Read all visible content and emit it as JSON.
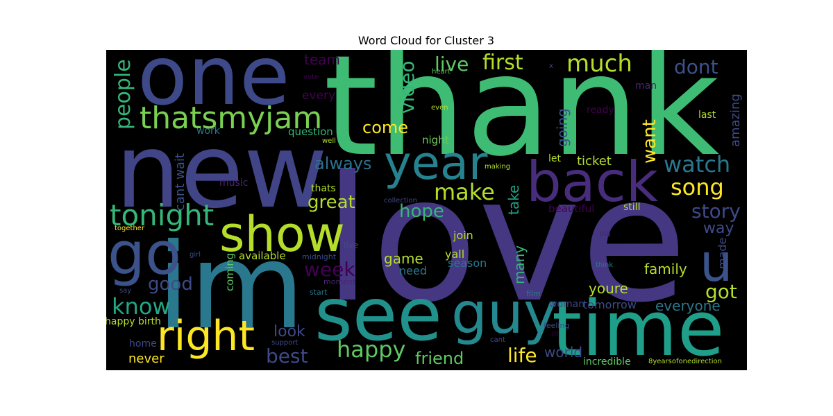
{
  "chart_data": {
    "type": "wordcloud",
    "title": "Word Cloud for Cluster 3",
    "background": "#000000",
    "words": [
      {
        "text": "thank",
        "color": "#3fbc73"
      },
      {
        "text": "love",
        "color": "#453781"
      },
      {
        "text": "new",
        "color": "#414487"
      },
      {
        "text": "one",
        "color": "#3e4989"
      },
      {
        "text": "im",
        "color": "#2a788e"
      },
      {
        "text": "see",
        "color": "#21918c"
      },
      {
        "text": "guy",
        "color": "#23898e"
      },
      {
        "text": "time",
        "color": "#1f9e89"
      },
      {
        "text": "back",
        "color": "#472d7b"
      },
      {
        "text": "show",
        "color": "#b5de2b"
      },
      {
        "text": "year",
        "color": "#26828e"
      },
      {
        "text": "go",
        "color": "#3b528b"
      },
      {
        "text": "u",
        "color": "#3b528b"
      },
      {
        "text": "thatsmyjam",
        "color": "#7ad151"
      },
      {
        "text": "right",
        "color": "#fde725"
      },
      {
        "text": "tonight",
        "color": "#35b779"
      },
      {
        "text": "know",
        "color": "#22a884"
      },
      {
        "text": "good",
        "color": "#3e4a89"
      },
      {
        "text": "week",
        "color": "#440154"
      },
      {
        "text": "people",
        "color": "#35b779"
      },
      {
        "text": "much",
        "color": "#b5de2b"
      },
      {
        "text": "dont",
        "color": "#3b528b"
      },
      {
        "text": "first",
        "color": "#b5de2b"
      },
      {
        "text": "live",
        "color": "#5ec962"
      },
      {
        "text": "video",
        "color": "#35b779"
      },
      {
        "text": "team",
        "color": "#440154"
      },
      {
        "text": "every",
        "color": "#440154"
      },
      {
        "text": "come",
        "color": "#fde725"
      },
      {
        "text": "always",
        "color": "#2c728e"
      },
      {
        "text": "question",
        "color": "#35b779"
      },
      {
        "text": "night",
        "color": "#6ece58"
      },
      {
        "text": "work",
        "color": "#2a788e"
      },
      {
        "text": "cant wait",
        "color": "#3b528b"
      },
      {
        "text": "great",
        "color": "#b5de2b"
      },
      {
        "text": "make",
        "color": "#b5de2b"
      },
      {
        "text": "hope",
        "color": "#35b779"
      },
      {
        "text": "take",
        "color": "#1fa187"
      },
      {
        "text": "want",
        "color": "#fde725"
      },
      {
        "text": "going",
        "color": "#3b528b"
      },
      {
        "text": "ready",
        "color": "#440154"
      },
      {
        "text": "man",
        "color": "#482475"
      },
      {
        "text": "last",
        "color": "#b5de2b"
      },
      {
        "text": "amazing",
        "color": "#3e4a89"
      },
      {
        "text": "watch",
        "color": "#2a788e"
      },
      {
        "text": "song",
        "color": "#fde725"
      },
      {
        "text": "story",
        "color": "#3e4a89"
      },
      {
        "text": "way",
        "color": "#3e4a89"
      },
      {
        "text": "made",
        "color": "#3e4a89"
      },
      {
        "text": "ticket",
        "color": "#b5de2b"
      },
      {
        "text": "let",
        "color": "#b5de2b"
      },
      {
        "text": "still",
        "color": "#b5de2b"
      },
      {
        "text": "beautiful",
        "color": "#440154"
      },
      {
        "text": "family",
        "color": "#b5de2b"
      },
      {
        "text": "youre",
        "color": "#b5de2b"
      },
      {
        "text": "tomorrow",
        "color": "#3e4a89"
      },
      {
        "text": "everyone",
        "color": "#2a788e"
      },
      {
        "text": "got",
        "color": "#b5de2b"
      },
      {
        "text": "woman",
        "color": "#3e4a89"
      },
      {
        "text": "feeling",
        "color": "#3e4a89"
      },
      {
        "text": "ill",
        "color": "#440154"
      },
      {
        "text": "world",
        "color": "#3e4a89"
      },
      {
        "text": "incredible",
        "color": "#5ec962"
      },
      {
        "text": "8yearsofonedirection",
        "color": "#b5de2b"
      },
      {
        "text": "life",
        "color": "#fde725"
      },
      {
        "text": "friend",
        "color": "#5ec962"
      },
      {
        "text": "happy",
        "color": "#5ec962"
      },
      {
        "text": "best",
        "color": "#3e4a89"
      },
      {
        "text": "look",
        "color": "#3e4a89"
      },
      {
        "text": "never",
        "color": "#fde725"
      },
      {
        "text": "home",
        "color": "#3e4a89"
      },
      {
        "text": "happy birth",
        "color": "#b5de2b"
      },
      {
        "text": "coming",
        "color": "#5ec962"
      },
      {
        "text": "available",
        "color": "#b5de2b"
      },
      {
        "text": "midnight",
        "color": "#3e4a89"
      },
      {
        "text": "live",
        "color": "#3e4a89"
      },
      {
        "text": "moment",
        "color": "#482475"
      },
      {
        "text": "start",
        "color": "#2a788e"
      },
      {
        "text": "game",
        "color": "#b5de2b"
      },
      {
        "text": "need",
        "color": "#2a788e"
      },
      {
        "text": "yall",
        "color": "#b5de2b"
      },
      {
        "text": "join",
        "color": "#b5de2b"
      },
      {
        "text": "season",
        "color": "#2a788e"
      },
      {
        "text": "many",
        "color": "#35b779"
      },
      {
        "text": "film",
        "color": "#2a788e"
      },
      {
        "text": "cant",
        "color": "#3e4a89"
      },
      {
        "text": "support",
        "color": "#3e4a89"
      },
      {
        "text": "think",
        "color": "#2a788e"
      },
      {
        "text": "big",
        "color": "#482475"
      },
      {
        "text": "thats",
        "color": "#b5de2b"
      },
      {
        "text": "collection",
        "color": "#3e4a89"
      },
      {
        "text": "music",
        "color": "#482475"
      },
      {
        "text": "together",
        "color": "#fde725"
      },
      {
        "text": "girl",
        "color": "#3e4a89"
      },
      {
        "text": "say",
        "color": "#3e4a89"
      },
      {
        "text": "heart",
        "color": "#5ec962"
      },
      {
        "text": "vote",
        "color": "#440154"
      },
      {
        "text": "x",
        "color": "#3e4a89"
      },
      {
        "text": "even",
        "color": "#b5de2b"
      },
      {
        "text": "well",
        "color": "#b5de2b"
      },
      {
        "text": "making",
        "color": "#b5de2b"
      }
    ]
  }
}
